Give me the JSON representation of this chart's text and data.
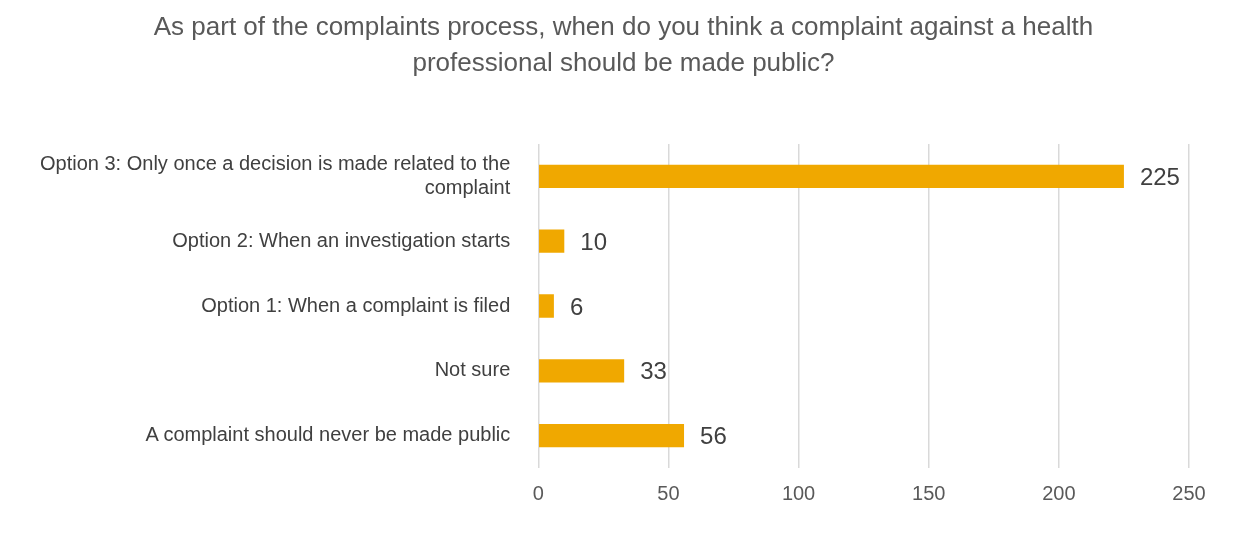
{
  "chart_data": {
    "type": "bar",
    "orientation": "horizontal",
    "title": "As part of the complaints process, when do you think a complaint against a health professional should be made public?",
    "categories": [
      "Option 3: Only once a decision is made related to the complaint",
      "Option 2: When an investigation starts",
      "Option 1: When a complaint is filed",
      "Not sure",
      "A complaint should never be made public"
    ],
    "values": [
      225,
      10,
      6,
      33,
      56
    ],
    "color": "#f0a800",
    "xlim": [
      0,
      250
    ],
    "xticks": [
      0,
      50,
      100,
      150,
      200,
      250
    ],
    "grid": "x",
    "data_labels": true,
    "legend": false
  }
}
